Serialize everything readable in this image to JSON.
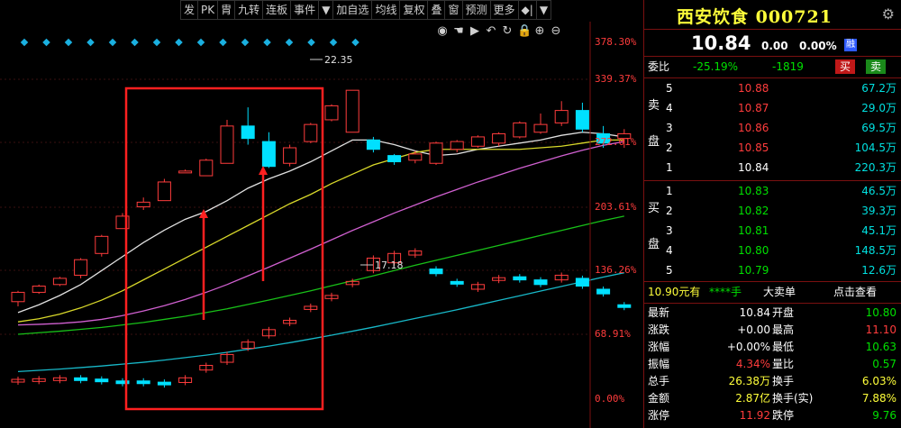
{
  "toolbar": [
    "发",
    "PK",
    "胄",
    "九转",
    "连板",
    "事件",
    "▼",
    "加自选",
    "均线",
    "复权",
    "叠",
    "窗",
    "预测",
    "更多",
    "◆|",
    "▼"
  ],
  "icons": [
    "eye-icon",
    "hand-icon",
    "play-icon",
    "undo-icon",
    "refresh-icon",
    "lock-icon",
    "zoom-in-icon",
    "zoom-out-icon"
  ],
  "icon_glyphs": [
    "◉",
    "☚",
    "▶",
    "↶",
    "↻",
    "🔒",
    "⊕",
    "⊖"
  ],
  "axis_labels": [
    "378.30%",
    "339.37%",
    "272.01%",
    "203.61%",
    "136.26%",
    "68.91%",
    "0.00%"
  ],
  "annotations": {
    "high": "22.35",
    "low": "17.18"
  },
  "colors": {
    "up": "#ff3c3c",
    "down": "#00e0ff",
    "ma5": "#e0e0e0",
    "ma10": "#d8d82a",
    "ma20": "#d060d0",
    "ma60": "#18c018",
    "ma120": "#18b8c8",
    "highlight_box": "#ff2020"
  },
  "chart_data": {
    "type": "candlestick",
    "candles": [
      {
        "o": 15.55,
        "c": 15.85,
        "h": 15.9,
        "l": 15.4
      },
      {
        "o": 15.85,
        "c": 16.05,
        "h": 16.1,
        "l": 15.8
      },
      {
        "o": 16.1,
        "c": 16.3,
        "h": 16.35,
        "l": 16.05
      },
      {
        "o": 16.4,
        "c": 16.9,
        "h": 16.95,
        "l": 16.3
      },
      {
        "o": 17.1,
        "c": 17.65,
        "h": 17.7,
        "l": 17.0
      },
      {
        "o": 17.9,
        "c": 18.3,
        "h": 18.4,
        "l": 17.9
      },
      {
        "o": 18.6,
        "c": 18.75,
        "h": 18.9,
        "l": 18.5
      },
      {
        "o": 18.8,
        "c": 19.4,
        "h": 19.5,
        "l": 18.8
      },
      {
        "o": 19.75,
        "c": 19.75,
        "h": 19.8,
        "l": 19.7
      },
      {
        "o": 19.6,
        "c": 20.1,
        "h": 20.15,
        "l": 19.6
      },
      {
        "o": 20.0,
        "c": 21.2,
        "h": 21.4,
        "l": 20.0
      },
      {
        "o": 21.2,
        "c": 20.8,
        "h": 21.8,
        "l": 20.6
      },
      {
        "o": 20.7,
        "c": 19.9,
        "h": 21.0,
        "l": 19.85
      },
      {
        "o": 20.0,
        "c": 20.5,
        "h": 20.6,
        "l": 19.9
      },
      {
        "o": 20.7,
        "c": 21.25,
        "h": 21.3,
        "l": 20.65
      },
      {
        "o": 21.4,
        "c": 21.85,
        "h": 21.9,
        "l": 21.35
      },
      {
        "o": 21.0,
        "c": 22.35,
        "h": 22.35,
        "l": 21.0
      },
      {
        "o": 20.75,
        "c": 20.45,
        "h": 20.85,
        "l": 20.35
      },
      {
        "o": 20.25,
        "c": 20.05,
        "h": 20.3,
        "l": 19.95
      },
      {
        "o": 20.1,
        "c": 20.3,
        "h": 20.4,
        "l": 20.0
      },
      {
        "o": 20.0,
        "c": 20.65,
        "h": 20.7,
        "l": 19.95
      },
      {
        "o": 20.45,
        "c": 20.7,
        "h": 20.75,
        "l": 20.35
      },
      {
        "o": 20.55,
        "c": 20.85,
        "h": 20.9,
        "l": 20.5
      },
      {
        "o": 20.65,
        "c": 20.95,
        "h": 21.0,
        "l": 20.55
      },
      {
        "o": 20.85,
        "c": 21.3,
        "h": 21.35,
        "l": 20.8
      },
      {
        "o": 21.0,
        "c": 21.25,
        "h": 21.6,
        "l": 20.95
      },
      {
        "o": 21.3,
        "c": 21.7,
        "h": 22.0,
        "l": 21.2
      },
      {
        "o": 21.7,
        "c": 21.1,
        "h": 21.95,
        "l": 21.0
      },
      {
        "o": 20.95,
        "c": 20.65,
        "h": 21.2,
        "l": 20.5
      },
      {
        "o": 20.8,
        "c": 20.95,
        "h": 21.1,
        "l": 20.5
      }
    ],
    "overlay_series": [
      {
        "name": "MA5",
        "values": [
          15.2,
          15.45,
          15.75,
          16.1,
          16.55,
          17.0,
          17.45,
          17.85,
          18.2,
          18.45,
          18.8,
          19.2,
          19.5,
          19.75,
          20.05,
          20.4,
          20.75,
          20.75,
          20.6,
          20.4,
          20.25,
          20.3,
          20.45,
          20.55,
          20.65,
          20.75,
          20.9,
          21.0,
          20.95,
          20.85
        ]
      },
      {
        "name": "MA10",
        "values": [
          14.9,
          15.0,
          15.15,
          15.35,
          15.6,
          15.9,
          16.25,
          16.6,
          16.95,
          17.3,
          17.65,
          18.0,
          18.35,
          18.7,
          19.0,
          19.35,
          19.65,
          19.95,
          20.15,
          20.35,
          20.45,
          20.45,
          20.45,
          20.45,
          20.45,
          20.5,
          20.55,
          20.65,
          20.75,
          20.75
        ]
      },
      {
        "name": "MA20",
        "values": [
          14.8,
          14.82,
          14.85,
          14.9,
          14.98,
          15.1,
          15.25,
          15.42,
          15.62,
          15.85,
          16.1,
          16.38,
          16.66,
          16.95,
          17.24,
          17.54,
          17.84,
          18.12,
          18.4,
          18.66,
          18.92,
          19.16,
          19.4,
          19.62,
          19.84,
          20.04,
          20.24,
          20.42,
          20.58,
          20.7
        ]
      },
      {
        "name": "MA60",
        "values": [
          14.5,
          14.55,
          14.6,
          14.66,
          14.72,
          14.8,
          14.88,
          14.98,
          15.08,
          15.2,
          15.32,
          15.46,
          15.6,
          15.75,
          15.9,
          16.06,
          16.22,
          16.38,
          16.55,
          16.72,
          16.88,
          17.04,
          17.2,
          17.36,
          17.52,
          17.68,
          17.84,
          18.0,
          18.16,
          18.3
        ]
      },
      {
        "name": "MA120",
        "values": [
          13.3,
          13.34,
          13.38,
          13.43,
          13.48,
          13.54,
          13.6,
          13.67,
          13.75,
          13.83,
          13.92,
          14.02,
          14.12,
          14.23,
          14.35,
          14.47,
          14.6,
          14.73,
          14.87,
          15.01,
          15.15,
          15.29,
          15.44,
          15.59,
          15.74,
          15.89,
          16.04,
          16.19,
          16.34,
          16.48
        ]
      }
    ],
    "lower_candles": [
      {
        "o": 13.05,
        "c": 13.05
      },
      {
        "o": 13.05,
        "c": 13.07
      },
      {
        "o": 13.08,
        "c": 13.1
      },
      {
        "o": 13.1,
        "c": 13.08
      },
      {
        "o": 13.06,
        "c": 13.04
      },
      {
        "o": 13.0,
        "c": 12.98
      },
      {
        "o": 13.0,
        "c": 12.98
      },
      {
        "o": 12.96,
        "c": 12.94
      },
      {
        "o": 12.95,
        "c": 13.1
      },
      {
        "o": 13.35,
        "c": 13.5
      },
      {
        "o": 13.6,
        "c": 13.85
      },
      {
        "o": 14.05,
        "c": 14.25
      },
      {
        "o": 14.45,
        "c": 14.65
      },
      {
        "o": 14.85,
        "c": 14.95
      },
      {
        "o": 15.3,
        "c": 15.4
      },
      {
        "o": 15.65,
        "c": 15.75
      },
      {
        "o": 16.1,
        "c": 16.2
      },
      {
        "o": 16.55,
        "c": 16.95
      },
      {
        "o": 16.8,
        "c": 17.1
      },
      {
        "o": 17.05,
        "c": 17.18
      },
      {
        "o": 16.6,
        "c": 16.45
      },
      {
        "o": 16.2,
        "c": 16.18
      },
      {
        "o": 15.95,
        "c": 16.1
      },
      {
        "o": 16.25,
        "c": 16.32
      },
      {
        "o": 16.35,
        "c": 16.25
      },
      {
        "o": 16.25,
        "c": 16.1
      },
      {
        "o": 16.25,
        "c": 16.4
      },
      {
        "o": 16.3,
        "c": 16.05
      },
      {
        "o": 15.95,
        "c": 15.8
      },
      {
        "o": 15.45,
        "c": 15.43
      }
    ]
  },
  "panel": {
    "title": "西安饮食 000721",
    "price": "10.84",
    "change": "0.00",
    "percent": "0.00%",
    "rong": "融",
    "weibi_label": "委比",
    "weibi": "-25.19%",
    "weicha": "-1819",
    "buy_label": "买",
    "sell_label": "卖",
    "sell_side_label": [
      "卖",
      "盘"
    ],
    "buy_side_label": [
      "买",
      "盘"
    ],
    "asks": [
      {
        "level": "5",
        "price": "10.88",
        "vol": "67.2万"
      },
      {
        "level": "4",
        "price": "10.87",
        "vol": "29.0万"
      },
      {
        "level": "3",
        "price": "10.86",
        "vol": "69.5万"
      },
      {
        "level": "2",
        "price": "10.85",
        "vol": "104.5万"
      },
      {
        "level": "1",
        "price": "10.84",
        "vol": "220.3万"
      }
    ],
    "bids": [
      {
        "level": "1",
        "price": "10.83",
        "vol": "46.5万"
      },
      {
        "level": "2",
        "price": "10.82",
        "vol": "39.3万"
      },
      {
        "level": "3",
        "price": "10.81",
        "vol": "45.1万"
      },
      {
        "level": "4",
        "price": "10.80",
        "vol": "148.5万"
      },
      {
        "level": "5",
        "price": "10.79",
        "vol": "12.6万"
      }
    ],
    "bigorder": {
      "left": "10.90元有",
      "stars": "****手",
      "mid": "大卖单",
      "right": "点击查看"
    },
    "stats": [
      {
        "l1": "最新",
        "v1": "10.84",
        "c1": "white",
        "l2": "开盘",
        "v2": "10.80",
        "c2": "green"
      },
      {
        "l1": "涨跌",
        "v1": "+0.00",
        "c1": "white",
        "l2": "最高",
        "v2": "11.10",
        "c2": "red"
      },
      {
        "l1": "涨幅",
        "v1": "+0.00%",
        "c1": "white",
        "l2": "最低",
        "v2": "10.63",
        "c2": "green"
      },
      {
        "l1": "振幅",
        "v1": "4.34%",
        "c1": "red",
        "l2": "量比",
        "v2": "0.57",
        "c2": "green"
      },
      {
        "l1": "总手",
        "v1": "26.38万",
        "c1": "yellow",
        "l2": "换手",
        "v2": "6.03%",
        "c2": "yellow"
      },
      {
        "l1": "金额",
        "v1": "2.87亿",
        "c1": "yellow",
        "l2": "换手(实)",
        "v2": "7.88%",
        "c2": "yellow"
      },
      {
        "l1": "涨停",
        "v1": "11.92",
        "c1": "red",
        "l2": "跌停",
        "v2": "9.76",
        "c2": "green"
      }
    ]
  }
}
